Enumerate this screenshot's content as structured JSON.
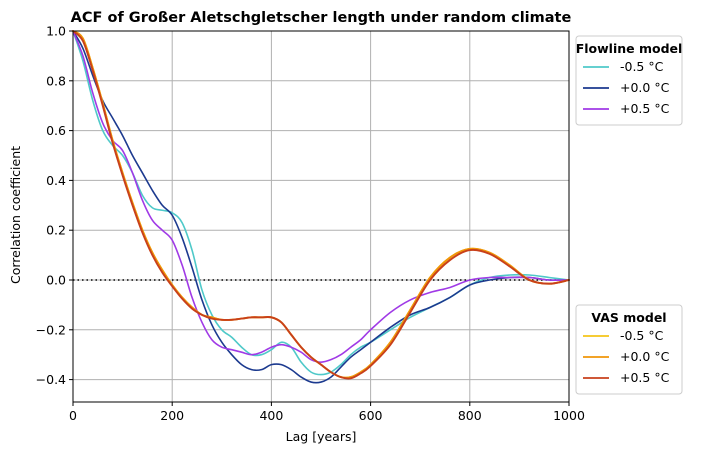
{
  "chart_data": {
    "type": "line",
    "title": "ACF of Großer Aletschgletscher length under random climate",
    "xlabel": "Lag [years]",
    "ylabel": "Correlation coefficient",
    "xlim": [
      0,
      1000
    ],
    "ylim": [
      -0.49,
      1.0
    ],
    "xticks": [
      "0",
      "200",
      "400",
      "600",
      "800",
      "1000"
    ],
    "yticks": [
      "−0.4",
      "−0.2",
      "0.0",
      "0.2",
      "0.4",
      "0.6",
      "0.8",
      "1.0"
    ],
    "grid": true,
    "zero_line": "dotted",
    "legends": [
      {
        "title": "Flowline model",
        "placement": "top-right outside",
        "entries": [
          {
            "label": "-0.5 °C",
            "color": "#4fc9c9"
          },
          {
            "label": "+0.0 °C",
            "color": "#1c3a8f"
          },
          {
            "label": "+0.5 °C",
            "color": "#a03ae6"
          }
        ]
      },
      {
        "title": "VAS model",
        "placement": "bottom-right outside",
        "entries": [
          {
            "label": "-0.5 °C",
            "color": "#f5c518"
          },
          {
            "label": "+0.0 °C",
            "color": "#f0960a"
          },
          {
            "label": "+0.5 °C",
            "color": "#c8401b"
          }
        ]
      }
    ],
    "series": [
      {
        "model": "Flowline model",
        "label": "-0.5 °C",
        "color": "#4fc9c9",
        "x": [
          0,
          20,
          40,
          60,
          80,
          100,
          120,
          140,
          160,
          180,
          200,
          220,
          240,
          260,
          280,
          300,
          320,
          340,
          360,
          380,
          400,
          420,
          440,
          460,
          480,
          500,
          520,
          540,
          560,
          580,
          600,
          640,
          680,
          720,
          760,
          800,
          840,
          880,
          920,
          960,
          1000
        ],
        "y": [
          1.0,
          0.88,
          0.72,
          0.6,
          0.54,
          0.5,
          0.43,
          0.34,
          0.29,
          0.28,
          0.27,
          0.23,
          0.12,
          -0.04,
          -0.14,
          -0.2,
          -0.23,
          -0.27,
          -0.3,
          -0.3,
          -0.28,
          -0.25,
          -0.27,
          -0.33,
          -0.37,
          -0.38,
          -0.37,
          -0.34,
          -0.3,
          -0.27,
          -0.25,
          -0.2,
          -0.15,
          -0.11,
          -0.07,
          -0.02,
          0.01,
          0.02,
          0.02,
          0.01,
          0.0
        ]
      },
      {
        "model": "Flowline model",
        "label": "+0.0 °C",
        "color": "#1c3a8f",
        "x": [
          0,
          20,
          40,
          60,
          80,
          100,
          120,
          140,
          160,
          180,
          200,
          220,
          240,
          260,
          280,
          300,
          320,
          340,
          360,
          380,
          400,
          420,
          440,
          460,
          480,
          500,
          520,
          540,
          560,
          580,
          600,
          640,
          680,
          720,
          760,
          800,
          840,
          880,
          920,
          960,
          1000
        ],
        "y": [
          1.0,
          0.93,
          0.82,
          0.72,
          0.65,
          0.58,
          0.5,
          0.43,
          0.36,
          0.3,
          0.26,
          0.17,
          0.05,
          -0.08,
          -0.18,
          -0.25,
          -0.3,
          -0.34,
          -0.36,
          -0.36,
          -0.34,
          -0.34,
          -0.36,
          -0.39,
          -0.41,
          -0.41,
          -0.39,
          -0.35,
          -0.31,
          -0.28,
          -0.25,
          -0.19,
          -0.14,
          -0.11,
          -0.07,
          -0.02,
          0.0,
          0.01,
          0.01,
          0.0,
          0.0
        ]
      },
      {
        "model": "Flowline model",
        "label": "+0.5 °C",
        "color": "#a03ae6",
        "x": [
          0,
          20,
          40,
          60,
          80,
          100,
          120,
          140,
          160,
          180,
          200,
          220,
          240,
          260,
          280,
          300,
          320,
          340,
          360,
          380,
          400,
          420,
          440,
          460,
          480,
          500,
          520,
          540,
          560,
          580,
          600,
          640,
          680,
          720,
          760,
          800,
          840,
          880,
          920,
          960,
          1000
        ],
        "y": [
          1.0,
          0.9,
          0.75,
          0.63,
          0.56,
          0.52,
          0.43,
          0.32,
          0.24,
          0.2,
          0.16,
          0.06,
          -0.07,
          -0.17,
          -0.24,
          -0.27,
          -0.28,
          -0.29,
          -0.3,
          -0.29,
          -0.27,
          -0.26,
          -0.27,
          -0.29,
          -0.32,
          -0.33,
          -0.32,
          -0.3,
          -0.27,
          -0.24,
          -0.2,
          -0.13,
          -0.08,
          -0.05,
          -0.03,
          0.0,
          0.01,
          0.01,
          0.01,
          0.0,
          0.0
        ]
      },
      {
        "model": "VAS model",
        "label": "-0.5 °C",
        "color": "#f5c518",
        "x": [
          0,
          20,
          40,
          60,
          80,
          100,
          120,
          140,
          160,
          180,
          200,
          220,
          240,
          260,
          280,
          300,
          320,
          340,
          360,
          380,
          400,
          420,
          440,
          460,
          480,
          500,
          520,
          540,
          560,
          580,
          600,
          640,
          680,
          720,
          760,
          800,
          840,
          880,
          920,
          960,
          1000
        ],
        "y": [
          1.0,
          0.97,
          0.85,
          0.71,
          0.56,
          0.43,
          0.31,
          0.2,
          0.11,
          0.04,
          -0.02,
          -0.07,
          -0.11,
          -0.14,
          -0.15,
          -0.16,
          -0.16,
          -0.155,
          -0.15,
          -0.15,
          -0.15,
          -0.17,
          -0.22,
          -0.27,
          -0.31,
          -0.34,
          -0.37,
          -0.39,
          -0.39,
          -0.37,
          -0.34,
          -0.25,
          -0.12,
          0.01,
          0.09,
          0.125,
          0.11,
          0.06,
          0.0,
          -0.015,
          0.0
        ]
      },
      {
        "model": "VAS model",
        "label": "+0.0 °C",
        "color": "#f0960a",
        "x": [
          0,
          20,
          40,
          60,
          80,
          100,
          120,
          140,
          160,
          180,
          200,
          220,
          240,
          260,
          280,
          300,
          320,
          340,
          360,
          380,
          400,
          420,
          440,
          460,
          480,
          500,
          520,
          540,
          560,
          580,
          600,
          640,
          680,
          720,
          760,
          800,
          840,
          880,
          920,
          960,
          1000
        ],
        "y": [
          1.0,
          0.97,
          0.85,
          0.71,
          0.56,
          0.43,
          0.31,
          0.2,
          0.11,
          0.04,
          -0.02,
          -0.07,
          -0.11,
          -0.14,
          -0.15,
          -0.16,
          -0.16,
          -0.155,
          -0.15,
          -0.15,
          -0.15,
          -0.17,
          -0.22,
          -0.27,
          -0.31,
          -0.34,
          -0.37,
          -0.39,
          -0.39,
          -0.37,
          -0.34,
          -0.25,
          -0.12,
          0.01,
          0.09,
          0.125,
          0.11,
          0.06,
          0.0,
          -0.015,
          0.0
        ]
      },
      {
        "model": "VAS model",
        "label": "+0.5 °C",
        "color": "#c8401b",
        "x": [
          0,
          20,
          40,
          60,
          80,
          100,
          120,
          140,
          160,
          180,
          200,
          220,
          240,
          260,
          280,
          300,
          320,
          340,
          360,
          380,
          400,
          420,
          440,
          460,
          480,
          500,
          520,
          540,
          560,
          580,
          600,
          640,
          680,
          720,
          760,
          800,
          840,
          880,
          920,
          960,
          1000
        ],
        "y": [
          1.0,
          0.96,
          0.84,
          0.7,
          0.55,
          0.42,
          0.3,
          0.19,
          0.1,
          0.03,
          -0.025,
          -0.075,
          -0.115,
          -0.14,
          -0.155,
          -0.16,
          -0.16,
          -0.155,
          -0.15,
          -0.15,
          -0.15,
          -0.17,
          -0.22,
          -0.27,
          -0.31,
          -0.34,
          -0.37,
          -0.39,
          -0.395,
          -0.375,
          -0.345,
          -0.26,
          -0.13,
          0.0,
          0.08,
          0.12,
          0.105,
          0.055,
          0.0,
          -0.015,
          0.0
        ]
      }
    ]
  }
}
